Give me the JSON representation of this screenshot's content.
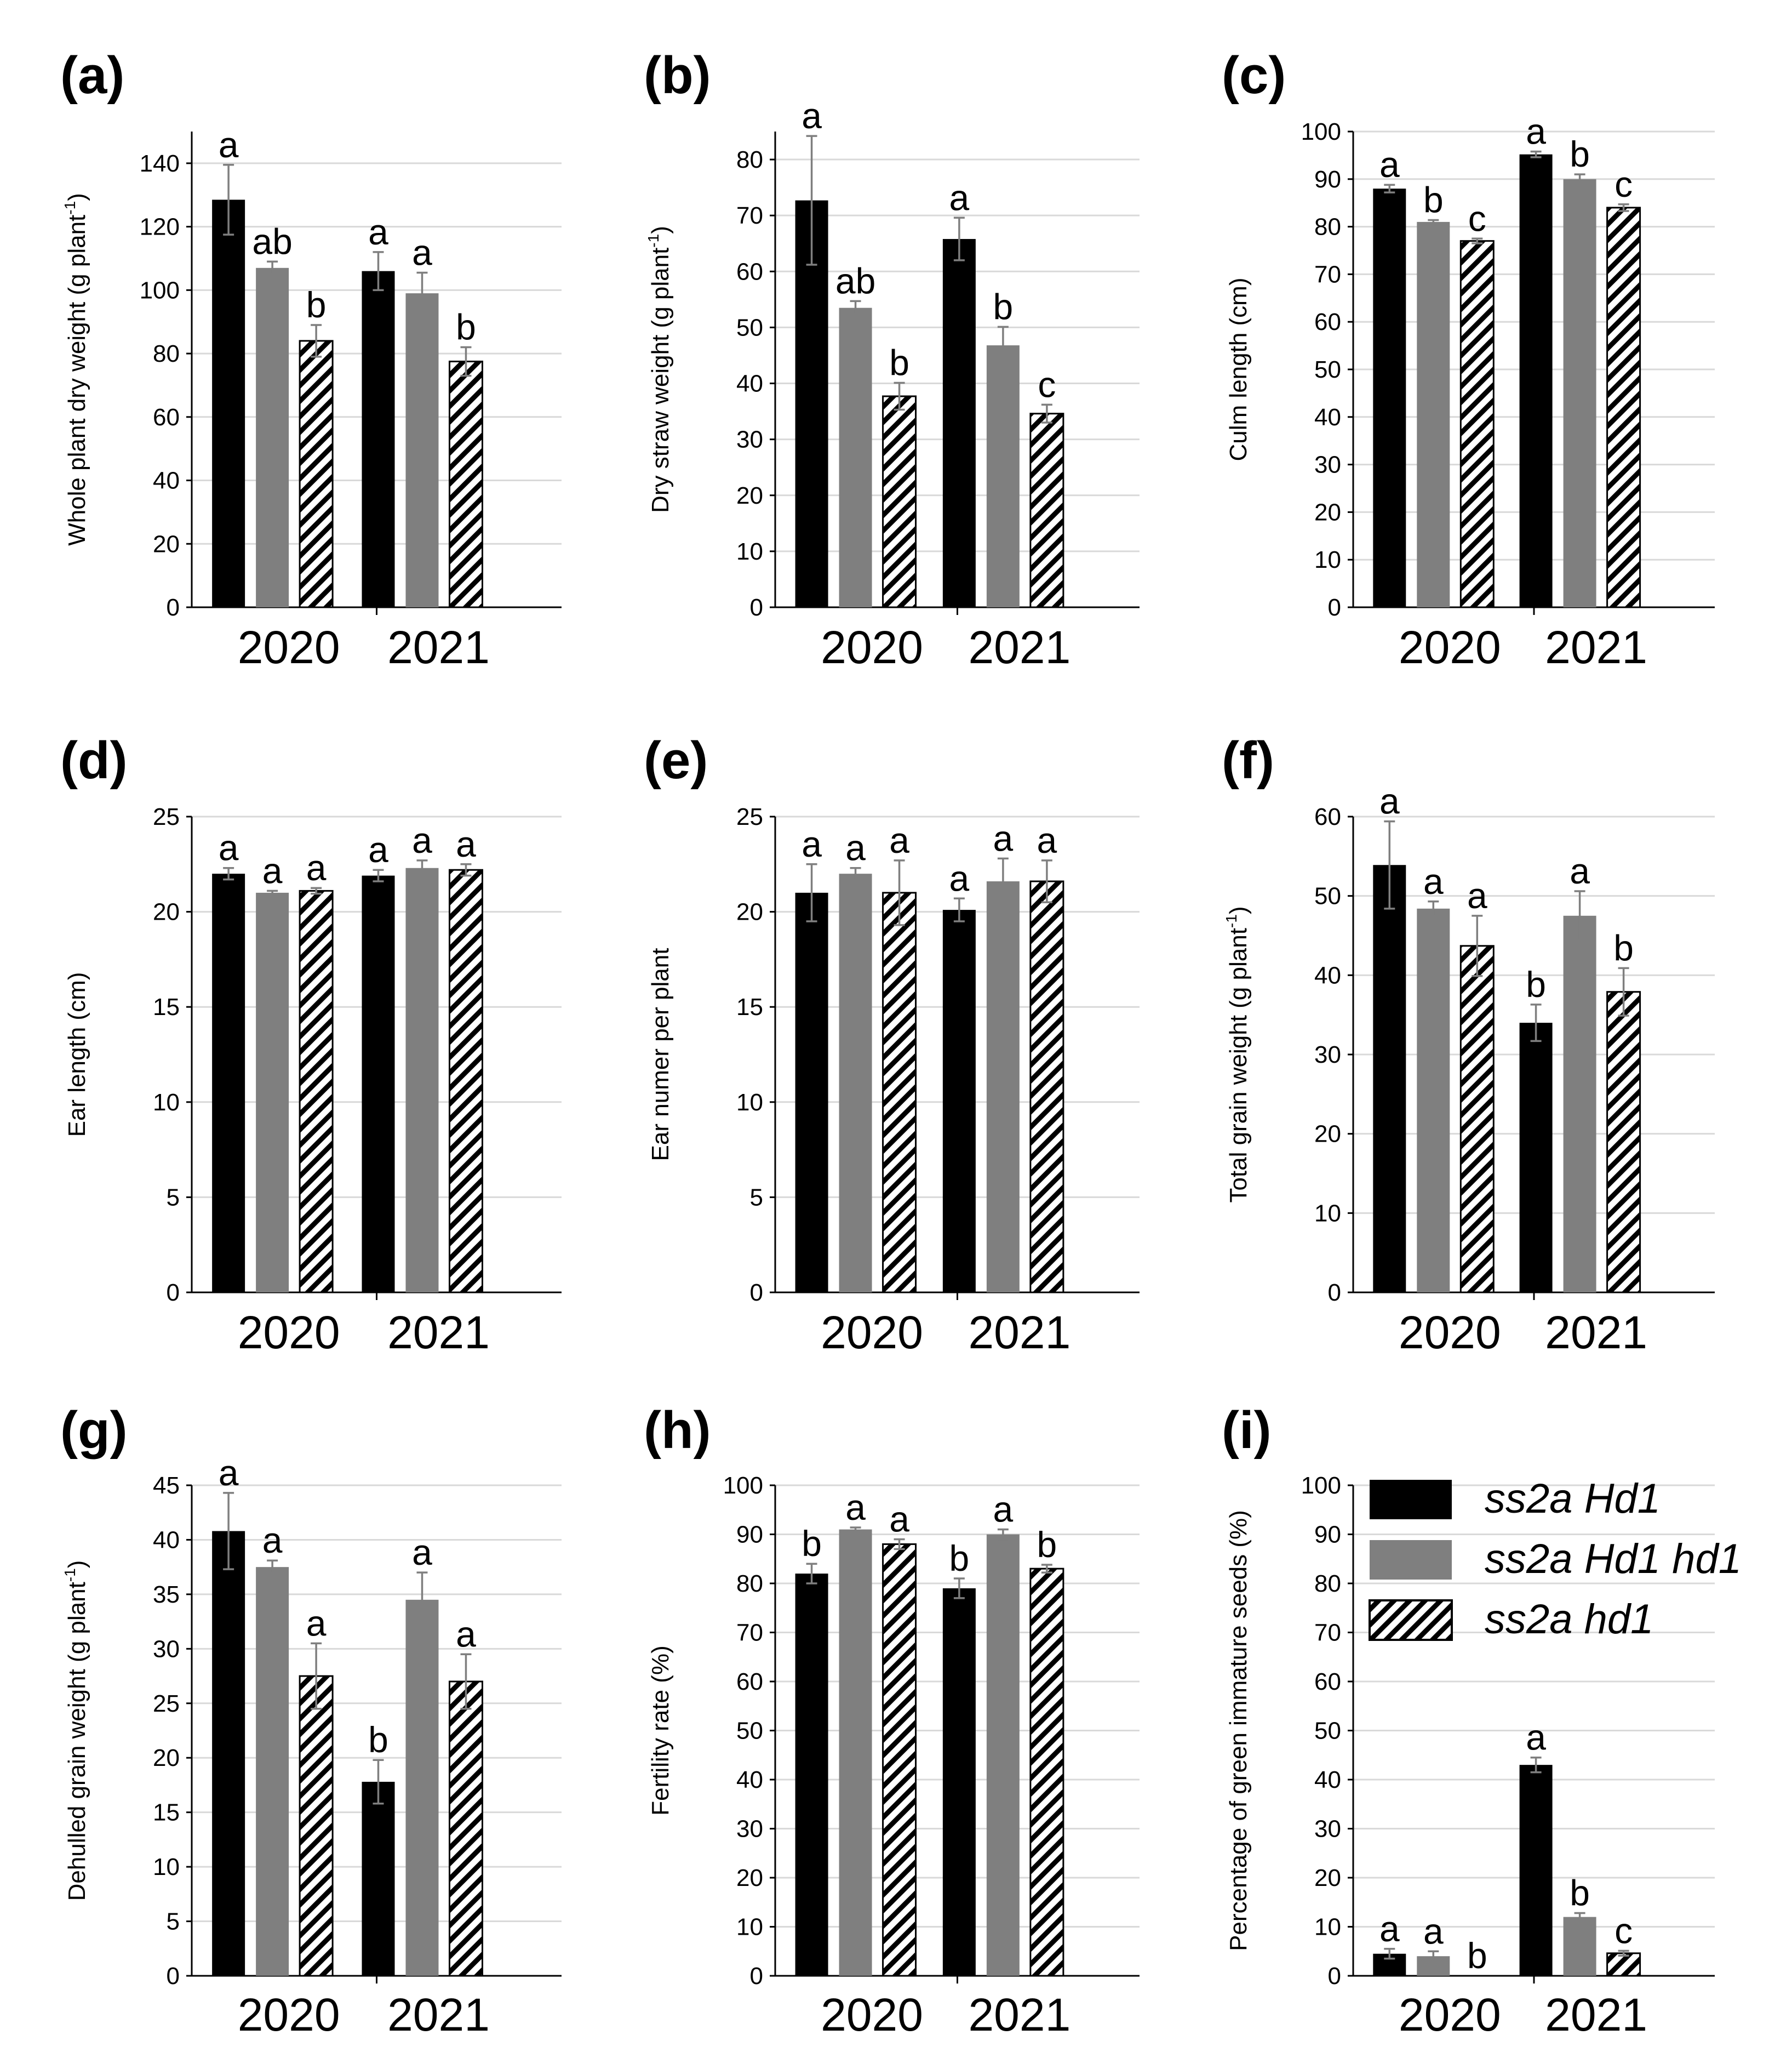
{
  "series_colors": {
    "black": "#000000",
    "gray": "#7f7f7f",
    "hatch": "#000000"
  },
  "legend": {
    "items": [
      {
        "label": "ss2a Hd1",
        "style": "black"
      },
      {
        "label": "ss2a Hd1 hd1",
        "style": "gray"
      },
      {
        "label": "ss2a hd1",
        "style": "hatch"
      }
    ]
  },
  "chart_data": [
    {
      "panel": "(a)",
      "type": "bar",
      "ylabel": "Whole plant dry weight (g plant",
      "ylabel_sup": "-1",
      "ylabel_end": ")",
      "ylim": [
        0,
        150
      ],
      "ytick_step": 20,
      "ytick_max": 140,
      "categories": [
        "2020",
        "2021"
      ],
      "series": [
        {
          "name": "ss2a Hd1",
          "values": [
            128.5,
            106
          ],
          "errors": [
            11,
            6
          ],
          "letters": [
            "a",
            "a"
          ]
        },
        {
          "name": "ss2a Hd1 hd1",
          "values": [
            107,
            99
          ],
          "errors": [
            2,
            6.5
          ],
          "letters": [
            "ab",
            "a"
          ]
        },
        {
          "name": "ss2a hd1",
          "values": [
            84,
            77.5
          ],
          "errors": [
            5,
            4.5
          ],
          "letters": [
            "b",
            "b"
          ]
        }
      ]
    },
    {
      "panel": "(b)",
      "type": "bar",
      "ylabel": "Dry straw weight (g plant",
      "ylabel_sup": "-1",
      "ylabel_end": ")",
      "ylim": [
        0,
        85
      ],
      "ytick_step": 10,
      "ytick_max": 80,
      "categories": [
        "2020",
        "2021"
      ],
      "series": [
        {
          "name": "ss2a Hd1",
          "values": [
            72.7,
            65.8
          ],
          "errors": [
            11.5,
            3.8
          ],
          "letters": [
            "a",
            "a"
          ]
        },
        {
          "name": "ss2a Hd1 hd1",
          "values": [
            53.5,
            46.8
          ],
          "errors": [
            1.2,
            3.3
          ],
          "letters": [
            "ab",
            "b"
          ]
        },
        {
          "name": "ss2a hd1",
          "values": [
            37.7,
            34.6
          ],
          "errors": [
            2.4,
            1.6
          ],
          "letters": [
            "b",
            "c"
          ]
        }
      ]
    },
    {
      "panel": "(c)",
      "type": "bar",
      "ylabel": "Culm length (cm)",
      "ylabel_sup": "",
      "ylabel_end": "",
      "ylim": [
        0,
        100
      ],
      "ytick_step": 10,
      "ytick_max": 100,
      "categories": [
        "2020",
        "2021"
      ],
      "series": [
        {
          "name": "ss2a Hd1",
          "values": [
            88,
            95.2
          ],
          "errors": [
            0.8,
            0.6
          ],
          "letters": [
            "a",
            "a"
          ]
        },
        {
          "name": "ss2a Hd1 hd1",
          "values": [
            81,
            90
          ],
          "errors": [
            0.4,
            1
          ],
          "letters": [
            "b",
            "b"
          ]
        },
        {
          "name": "ss2a hd1",
          "values": [
            77,
            84
          ],
          "errors": [
            0.5,
            0.7
          ],
          "letters": [
            "c",
            "c"
          ]
        }
      ]
    },
    {
      "panel": "(d)",
      "type": "bar",
      "ylabel": "Ear length (cm)",
      "ylabel_sup": "",
      "ylabel_end": "",
      "ylim": [
        0,
        25
      ],
      "ytick_step": 5,
      "ytick_max": 25,
      "categories": [
        "2020",
        "2021"
      ],
      "series": [
        {
          "name": "ss2a Hd1",
          "values": [
            22,
            21.9
          ],
          "errors": [
            0.3,
            0.3
          ],
          "letters": [
            "a",
            "a"
          ]
        },
        {
          "name": "ss2a Hd1 hd1",
          "values": [
            21,
            22.3
          ],
          "errors": [
            0.1,
            0.4
          ],
          "letters": [
            "a",
            "a"
          ]
        },
        {
          "name": "ss2a hd1",
          "values": [
            21.1,
            22.2
          ],
          "errors": [
            0.15,
            0.3
          ],
          "letters": [
            "a",
            "a"
          ]
        }
      ]
    },
    {
      "panel": "(e)",
      "type": "bar",
      "ylabel": "Ear numer per plant",
      "ylabel_sup": "",
      "ylabel_end": "",
      "ylim": [
        0,
        25
      ],
      "ytick_step": 5,
      "ytick_max": 25,
      "categories": [
        "2020",
        "2021"
      ],
      "series": [
        {
          "name": "ss2a Hd1",
          "values": [
            21,
            20.1
          ],
          "errors": [
            1.5,
            0.6
          ],
          "letters": [
            "a",
            "a"
          ]
        },
        {
          "name": "ss2a Hd1 hd1",
          "values": [
            22,
            21.6
          ],
          "errors": [
            0.3,
            1.2
          ],
          "letters": [
            "a",
            "a"
          ]
        },
        {
          "name": "ss2a hd1",
          "values": [
            21,
            21.6
          ],
          "errors": [
            1.7,
            1.1
          ],
          "letters": [
            "a",
            "a"
          ]
        }
      ]
    },
    {
      "panel": "(f)",
      "type": "bar",
      "ylabel": "Total grain weight (g plant",
      "ylabel_sup": "-1",
      "ylabel_end": ")",
      "ylim": [
        0,
        60
      ],
      "ytick_step": 10,
      "ytick_max": 60,
      "categories": [
        "2020",
        "2021"
      ],
      "series": [
        {
          "name": "ss2a Hd1",
          "values": [
            53.9,
            34
          ],
          "errors": [
            5.5,
            2.3
          ],
          "letters": [
            "a",
            "b"
          ]
        },
        {
          "name": "ss2a Hd1 hd1",
          "values": [
            48.4,
            47.5
          ],
          "errors": [
            0.9,
            3.1
          ],
          "letters": [
            "a",
            "a"
          ]
        },
        {
          "name": "ss2a hd1",
          "values": [
            43.7,
            37.9
          ],
          "errors": [
            3.8,
            3
          ],
          "letters": [
            "a",
            "b"
          ]
        }
      ]
    },
    {
      "panel": "(g)",
      "type": "bar",
      "ylabel": "Dehulled grain weight (g plant",
      "ylabel_sup": "-1",
      "ylabel_end": ")",
      "ylim": [
        0,
        45
      ],
      "ytick_step": 5,
      "ytick_max": 45,
      "categories": [
        "2020",
        "2021"
      ],
      "series": [
        {
          "name": "ss2a Hd1",
          "values": [
            40.8,
            17.8
          ],
          "errors": [
            3.5,
            2
          ],
          "letters": [
            "a",
            "b"
          ]
        },
        {
          "name": "ss2a Hd1 hd1",
          "values": [
            37.5,
            34.5
          ],
          "errors": [
            0.6,
            2.5
          ],
          "letters": [
            "a",
            "a"
          ]
        },
        {
          "name": "ss2a hd1",
          "values": [
            27.5,
            27
          ],
          "errors": [
            3,
            2.5
          ],
          "letters": [
            "a",
            "a"
          ]
        }
      ]
    },
    {
      "panel": "(h)",
      "type": "bar",
      "ylabel": "Fertility rate (%)",
      "ylabel_sup": "",
      "ylabel_end": "",
      "ylim": [
        0,
        100
      ],
      "ytick_step": 10,
      "ytick_max": 100,
      "categories": [
        "2020",
        "2021"
      ],
      "series": [
        {
          "name": "ss2a Hd1",
          "values": [
            82,
            79
          ],
          "errors": [
            2,
            2
          ],
          "letters": [
            "b",
            "b"
          ]
        },
        {
          "name": "ss2a Hd1 hd1",
          "values": [
            91,
            90
          ],
          "errors": [
            0.4,
            1
          ],
          "letters": [
            "a",
            "a"
          ]
        },
        {
          "name": "ss2a hd1",
          "values": [
            88,
            83
          ],
          "errors": [
            1,
            0.8
          ],
          "letters": [
            "a",
            "b"
          ]
        }
      ]
    },
    {
      "panel": "(i)",
      "type": "bar",
      "ylabel": "Percentage of green immature  seeds (%)",
      "ylabel_sup": "",
      "ylabel_end": "",
      "ylim": [
        0,
        100
      ],
      "ytick_step": 10,
      "ytick_max": 100,
      "categories": [
        "2020",
        "2021"
      ],
      "series": [
        {
          "name": "ss2a Hd1",
          "values": [
            4.5,
            43
          ],
          "errors": [
            1,
            1.5
          ],
          "letters": [
            "a",
            "a"
          ]
        },
        {
          "name": "ss2a Hd1 hd1",
          "values": [
            4,
            12
          ],
          "errors": [
            1,
            0.8
          ],
          "letters": [
            "a",
            "b"
          ]
        },
        {
          "name": "ss2a hd1",
          "values": [
            0,
            4.6
          ],
          "errors": [
            0,
            0.5
          ],
          "letters": [
            "b",
            "c"
          ]
        }
      ]
    }
  ]
}
